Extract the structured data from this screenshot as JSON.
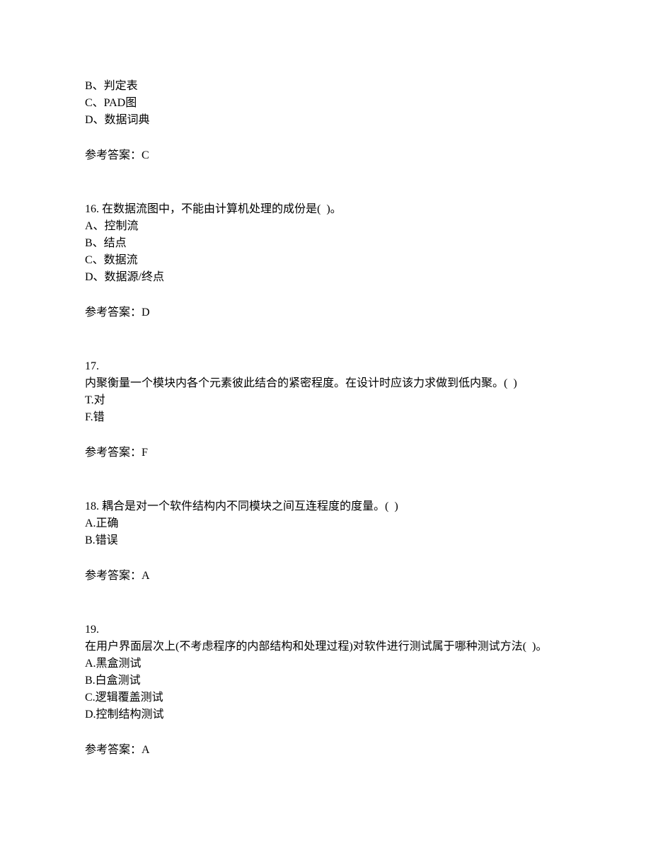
{
  "q15": {
    "options": {
      "b": "B、判定表",
      "c": "C、PAD图",
      "d": "D、数据词典"
    },
    "answer": "参考答案：C"
  },
  "q16": {
    "stem": "16. 在数据流图中，不能由计算机处理的成份是(  )。",
    "options": {
      "a": "A、控制流",
      "b": "B、结点",
      "c": "C、数据流",
      "d": "D、数据源/终点"
    },
    "answer": "参考答案：D"
  },
  "q17": {
    "number": "17.",
    "stem": "内聚衡量一个模块内各个元素彼此结合的紧密程度。在设计时应该力求做到低内聚。(  )",
    "options": {
      "t": "T.对",
      "f": "F.错"
    },
    "answer": "参考答案：F"
  },
  "q18": {
    "stem": "18. 耦合是对一个软件结构内不同模块之间互连程度的度量。(  )",
    "options": {
      "a": "A.正确",
      "b": "B.错误"
    },
    "answer": "参考答案：A"
  },
  "q19": {
    "number": "19.",
    "stem": "在用户界面层次上(不考虑程序的内部结构和处理过程)对软件进行测试属于哪种测试方法(  )。",
    "options": {
      "a": "A.黑盒测试",
      "b": "B.白盒测试",
      "c": "C.逻辑覆盖测试",
      "d": "D.控制结构测试"
    },
    "answer": "参考答案：A"
  }
}
